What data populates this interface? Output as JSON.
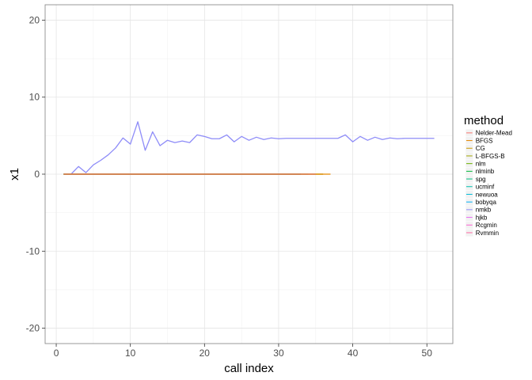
{
  "chart_data": {
    "type": "line",
    "title": "",
    "xlabel": "call index",
    "ylabel": "x1",
    "xlim": [
      -1.5,
      53.5
    ],
    "ylim": [
      -22,
      22
    ],
    "xticks": [
      0,
      10,
      20,
      30,
      40,
      50
    ],
    "yticks": [
      -20,
      -10,
      0,
      10,
      20
    ],
    "grid": true,
    "legend": {
      "title": "method",
      "placement": "right"
    },
    "series": [
      {
        "name": "Nelder-Mead",
        "color": "#F8766D",
        "x": [
          1,
          35
        ],
        "y": [
          0,
          0
        ]
      },
      {
        "name": "BFGS",
        "color": "#E58700",
        "x": [
          1,
          37
        ],
        "y": [
          0,
          0
        ]
      },
      {
        "name": "CG",
        "color": "#C99800",
        "x": [
          1,
          36
        ],
        "y": [
          0,
          0
        ]
      },
      {
        "name": "L-BFGS-B",
        "color": "#A3A500",
        "x": [
          1,
          35
        ],
        "y": [
          0,
          0
        ]
      },
      {
        "name": "nlm",
        "color": "#6BB100",
        "x": [
          1,
          36
        ],
        "y": [
          0,
          0
        ]
      },
      {
        "name": "nlminb",
        "color": "#00BA38",
        "x": [
          1,
          35
        ],
        "y": [
          0,
          0
        ]
      },
      {
        "name": "spg",
        "color": "#00BF7D",
        "x": [
          1,
          34
        ],
        "y": [
          0,
          0
        ]
      },
      {
        "name": "ucminf",
        "color": "#00C0AF",
        "x": [
          1,
          33
        ],
        "y": [
          0,
          0
        ]
      },
      {
        "name": "newuoa",
        "color": "#00BCD8",
        "x": [
          1,
          33
        ],
        "y": [
          0,
          0
        ]
      },
      {
        "name": "bobyqa",
        "color": "#00B0F6",
        "x": [
          1,
          33
        ],
        "y": [
          0,
          0
        ]
      },
      {
        "name": "nmkb",
        "color": "#8E8CF8",
        "x": [
          1,
          2,
          3,
          4,
          5,
          6,
          7,
          8,
          9,
          10,
          11,
          12,
          13,
          14,
          15,
          16,
          17,
          18,
          19,
          20,
          21,
          22,
          23,
          24,
          25,
          26,
          27,
          28,
          29,
          30,
          31,
          32,
          33,
          34,
          35,
          36,
          37,
          38,
          39,
          40,
          41,
          42,
          43,
          44,
          45,
          46,
          47,
          48,
          49,
          50,
          51
        ],
        "y": [
          0,
          0,
          1.0,
          0.2,
          1.2,
          1.8,
          2.5,
          3.4,
          4.7,
          3.9,
          6.8,
          3.1,
          5.5,
          3.7,
          4.4,
          4.1,
          4.3,
          4.1,
          5.1,
          4.9,
          4.6,
          4.6,
          5.1,
          4.2,
          4.9,
          4.4,
          4.8,
          4.5,
          4.7,
          4.6,
          4.65,
          4.65,
          4.65,
          4.65,
          4.65,
          4.65,
          4.65,
          4.65,
          5.1,
          4.2,
          4.9,
          4.4,
          4.8,
          4.5,
          4.7,
          4.6,
          4.65,
          4.65,
          4.65,
          4.65,
          4.65
        ]
      },
      {
        "name": "hjkb",
        "color": "#E76BF3",
        "x": [
          1,
          33
        ],
        "y": [
          0,
          0
        ]
      },
      {
        "name": "Rcgmin",
        "color": "#FD61D1",
        "x": [
          1,
          33
        ],
        "y": [
          0,
          0
        ]
      },
      {
        "name": "Rvmmin",
        "color": "#FF67A4",
        "x": [
          1,
          33
        ],
        "y": [
          0,
          0
        ]
      }
    ]
  }
}
